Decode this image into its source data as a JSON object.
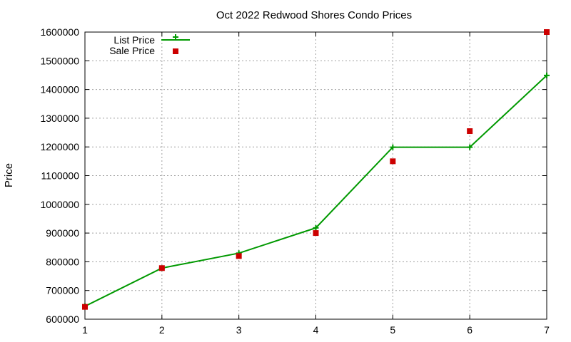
{
  "chart_data": {
    "type": "line",
    "title": "Oct 2022 Redwood Shores Condo Prices",
    "xlabel": "",
    "ylabel": "Price",
    "xlim": [
      1,
      7
    ],
    "ylim": [
      600000,
      1600000
    ],
    "x_ticks": [
      "1",
      "2",
      "3",
      "4",
      "5",
      "6",
      "7"
    ],
    "y_ticks": [
      "600000",
      "700000",
      "800000",
      "900000",
      "1000000",
      "1100000",
      "1200000",
      "1300000",
      "1400000",
      "1500000",
      "1600000"
    ],
    "grid": true,
    "legend_position": "top-left",
    "x": [
      1,
      2,
      3,
      4,
      5,
      6,
      7
    ],
    "series": [
      {
        "name": "List Price",
        "style": "line-with-plus-markers",
        "color": "#009900",
        "values": [
          645000,
          778000,
          830000,
          918000,
          1199000,
          1199000,
          1449000
        ]
      },
      {
        "name": "Sale Price",
        "style": "square-markers",
        "color": "#cc0000",
        "values": [
          643000,
          778000,
          820000,
          900000,
          1150000,
          1255000,
          1600000
        ]
      }
    ]
  }
}
